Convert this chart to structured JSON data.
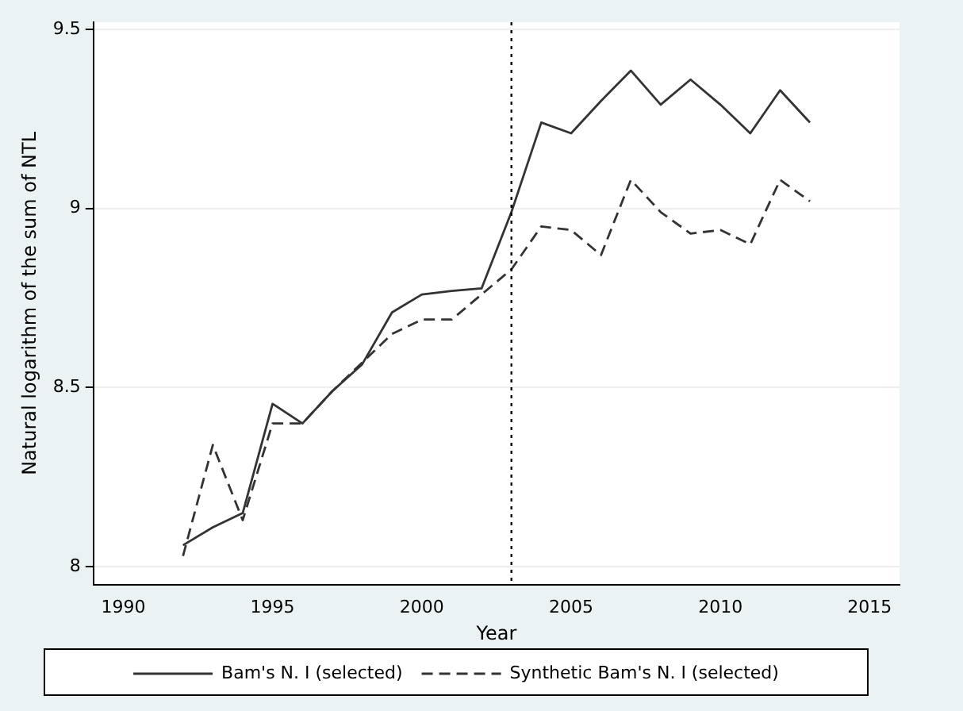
{
  "chart_data": {
    "type": "line",
    "xlabel": "Year",
    "ylabel": "Natural logarithm of the sum of NTL",
    "x": [
      1992,
      1993,
      1994,
      1995,
      1996,
      1997,
      1998,
      1999,
      2000,
      2001,
      2002,
      2003,
      2004,
      2005,
      2006,
      2007,
      2008,
      2009,
      2010,
      2011,
      2012,
      2013
    ],
    "series": [
      {
        "name": "Bam's N. I (selected)",
        "color": "#333333",
        "line_style": "solid",
        "values": [
          8.06,
          8.11,
          8.15,
          8.455,
          8.4,
          8.49,
          8.565,
          8.71,
          8.76,
          8.77,
          8.777,
          8.99,
          9.24,
          9.21,
          9.3,
          9.385,
          9.29,
          9.36,
          9.29,
          9.21,
          9.33,
          9.24
        ]
      },
      {
        "name": "Synthetic Bam's N. I (selected)",
        "color": "#333333",
        "line_style": "dashed",
        "values": [
          8.03,
          8.34,
          8.13,
          8.4,
          8.4,
          8.49,
          8.57,
          8.65,
          8.69,
          8.69,
          8.76,
          8.83,
          8.95,
          8.94,
          8.87,
          9.08,
          8.99,
          8.93,
          8.94,
          8.9,
          9.08,
          9.02
        ]
      }
    ],
    "xlim": [
      1989,
      2016
    ],
    "xticks": [
      1990,
      1995,
      2000,
      2005,
      2010,
      2015
    ],
    "ylim": [
      7.95,
      9.52
    ],
    "yticks": [
      8,
      8.5,
      9,
      9.5
    ],
    "grid": "y",
    "legend": "bottom",
    "marker": "none",
    "ref_lines": [
      {
        "axis": "x",
        "value": 2003,
        "line_style": "dotted",
        "color": "#000000"
      }
    ]
  }
}
